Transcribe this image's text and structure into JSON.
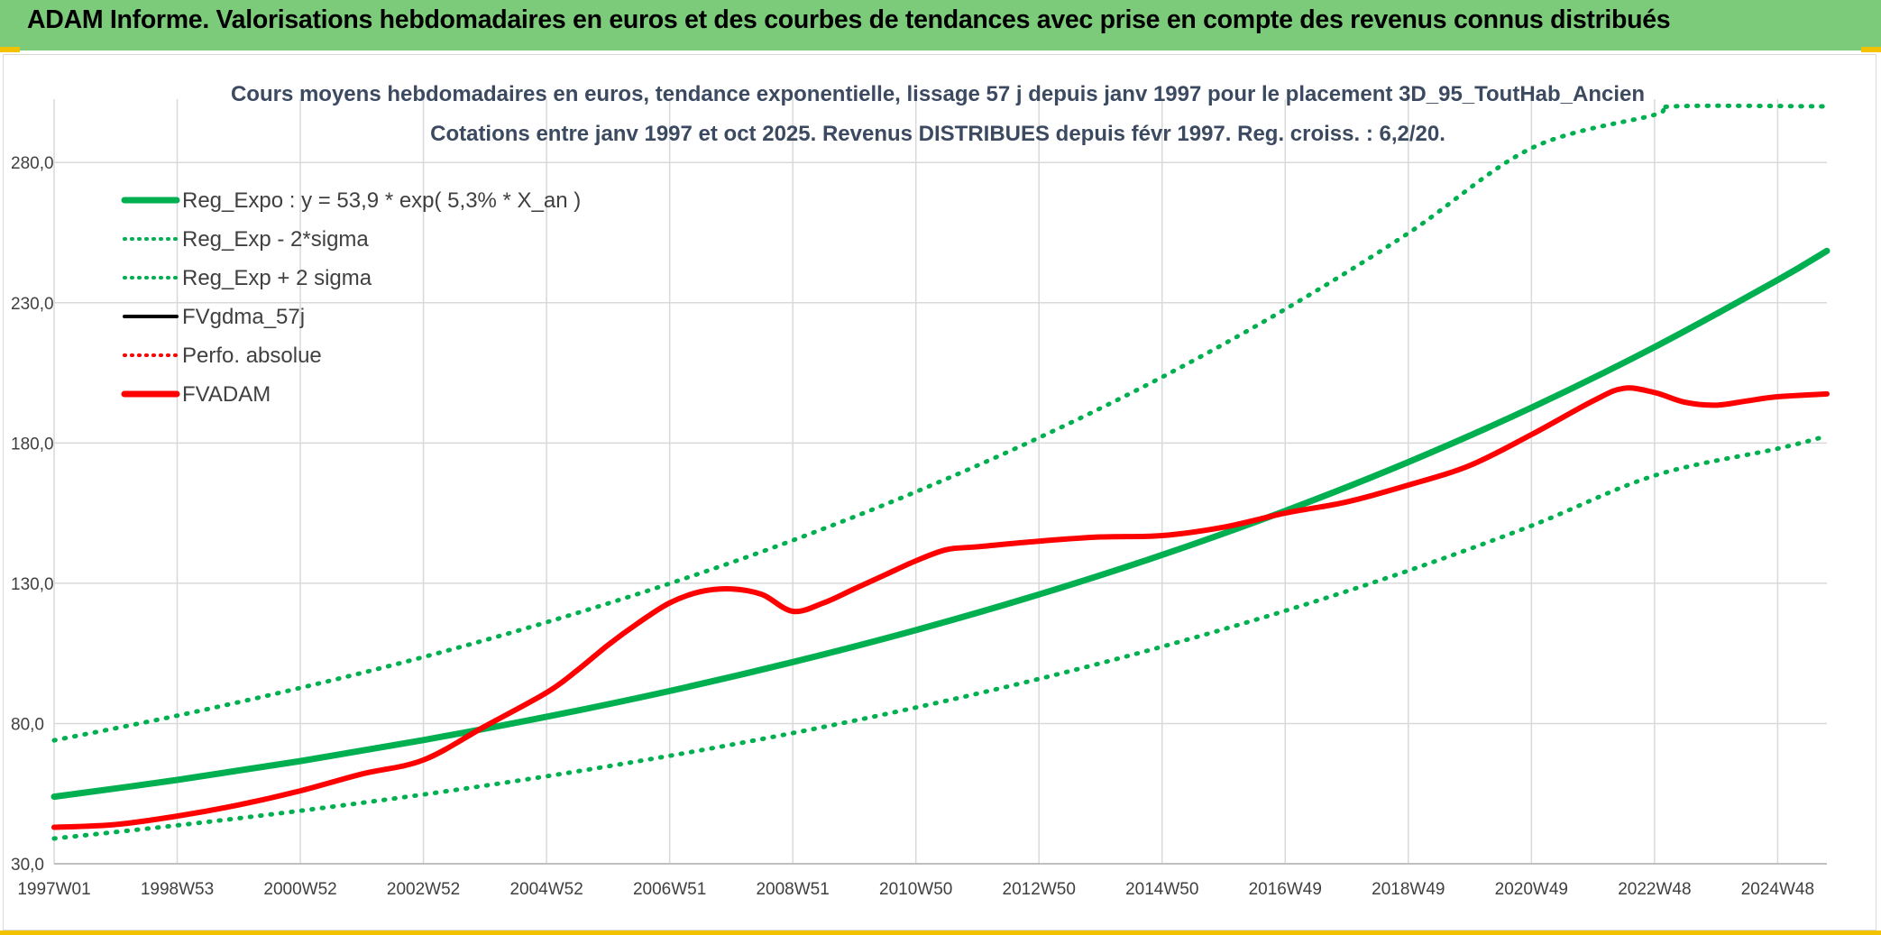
{
  "header": {
    "title": "ADAM Informe. Valorisations hebdomadaires en euros et des courbes de tendances avec prise en compte des revenus connus distribués"
  },
  "colors": {
    "banner": "#7ccb7a",
    "green_series": "#00b050",
    "red_series": "#ff0000",
    "black_series": "#000000",
    "grid": "#d9d9d9",
    "accent_yellow": "#f2c200"
  },
  "chart_data": {
    "type": "line",
    "title": "Cours moyens hebdomadaires en euros, tendance exponentielle, lissage 57 j depuis janv 1997 pour le placement 3D_95_ToutHab_Ancien",
    "subtitle": "Cotations entre janv 1997 et oct 2025. Revenus DISTRIBUES depuis févr 1997. Reg. croiss. : 6,2/20.",
    "xlabel": "",
    "ylabel": "",
    "x_range": [
      1997.0,
      2025.8
    ],
    "ylim": [
      30,
      300
    ],
    "yticks": [
      30,
      80,
      130,
      180,
      230,
      280
    ],
    "ytick_labels": [
      "30,0",
      "80,0",
      "130,0",
      "180,0",
      "230,0",
      "280,0"
    ],
    "xtick_positions": [
      1997.0,
      1999.0,
      2001.0,
      2003.0,
      2005.0,
      2007.0,
      2009.0,
      2011.0,
      2013.0,
      2015.0,
      2017.0,
      2019.0,
      2021.0,
      2023.0,
      2025.0
    ],
    "xtick_labels": [
      "1997W01",
      "1998W53",
      "2000W52",
      "2002W52",
      "2004W52",
      "2006W51",
      "2008W51",
      "2010W50",
      "2012W50",
      "2014W50",
      "2016W49",
      "2018W49",
      "2020W49",
      "2022W48",
      "2024W48"
    ],
    "grid": true,
    "legend_position": "top-left",
    "legend": [
      {
        "name": "Reg_Expo : y = 53,9 * exp( 5,3% *  X_an )",
        "color": "#00b050",
        "style": "solid-thick"
      },
      {
        "name": "Reg_Exp - 2*sigma",
        "color": "#00b050",
        "style": "dotted"
      },
      {
        "name": "Reg_Exp + 2 sigma",
        "color": "#00b050",
        "style": "dotted"
      },
      {
        "name": "FVgdma_57j",
        "color": "#000000",
        "style": "solid"
      },
      {
        "name": "Perfo. absolue",
        "color": "#ff0000",
        "style": "dotted"
      },
      {
        "name": "FVADAM",
        "color": "#ff0000",
        "style": "solid-thick"
      }
    ],
    "series": [
      {
        "name": "Reg_Expo : y = 53,9 * exp( 5,3% *  X_an )",
        "x": [
          1997.0,
          1999.0,
          2001.0,
          2003.0,
          2005.0,
          2007.0,
          2009.0,
          2011.0,
          2013.0,
          2015.0,
          2017.0,
          2019.0,
          2021.0,
          2023.0,
          2025.0,
          2025.8
        ],
        "values": [
          53.9,
          59.9,
          66.6,
          74.1,
          82.4,
          91.6,
          101.9,
          113.3,
          126.0,
          140.1,
          155.8,
          173.2,
          192.6,
          214.2,
          238.1,
          248.5
        ]
      },
      {
        "name": "Reg_Exp - 2*sigma",
        "x": [
          1997.0,
          1999.0,
          2001.0,
          2003.0,
          2005.0,
          2007.0,
          2009.0,
          2011.0,
          2013.0,
          2015.0,
          2017.0,
          2019.0,
          2021.0,
          2023.0,
          2025.0,
          2025.8
        ],
        "values": [
          39.0,
          43.7,
          48.9,
          54.7,
          61.2,
          68.5,
          76.6,
          85.7,
          95.9,
          107.4,
          120.2,
          134.5,
          150.5,
          168.4,
          178.0,
          182.5
        ]
      },
      {
        "name": "Reg_Exp + 2 sigma",
        "x": [
          1997.0,
          1999.0,
          2001.0,
          2003.0,
          2005.0,
          2007.0,
          2009.0,
          2011.0,
          2013.0,
          2015.0,
          2017.0,
          2019.0,
          2021.0,
          2023.0,
          2023.3,
          2025.8
        ],
        "values": [
          74.0,
          82.8,
          92.7,
          103.7,
          116.1,
          129.9,
          145.3,
          162.6,
          181.9,
          203.5,
          227.7,
          254.8,
          285.1,
          297.0,
          300.0,
          300.0
        ]
      },
      {
        "name": "FVADAM",
        "x": [
          1997.0,
          1998.0,
          1999.0,
          2000.0,
          2001.0,
          2002.0,
          2003.0,
          2004.0,
          2005.0,
          2005.5,
          2006.0,
          2006.5,
          2007.0,
          2007.5,
          2008.0,
          2008.5,
          2009.0,
          2009.5,
          2010.0,
          2010.5,
          2011.0,
          2011.5,
          2012.0,
          2013.0,
          2014.0,
          2015.0,
          2016.0,
          2017.0,
          2018.0,
          2019.0,
          2020.0,
          2021.0,
          2022.0,
          2022.5,
          2023.0,
          2023.5,
          2024.0,
          2024.5,
          2025.0,
          2025.8
        ],
        "values": [
          43.0,
          44.0,
          47.0,
          51.0,
          56.0,
          62.0,
          67.0,
          79.0,
          91.0,
          99.0,
          108.0,
          116.0,
          123.0,
          127.0,
          128.0,
          126.0,
          120.0,
          123.0,
          128.0,
          133.0,
          138.0,
          142.0,
          143.0,
          145.0,
          146.5,
          147.0,
          150.0,
          155.0,
          159.0,
          165.0,
          172.0,
          183.0,
          195.0,
          199.5,
          198.0,
          194.5,
          193.5,
          195.0,
          196.5,
          197.5
        ]
      }
    ]
  }
}
